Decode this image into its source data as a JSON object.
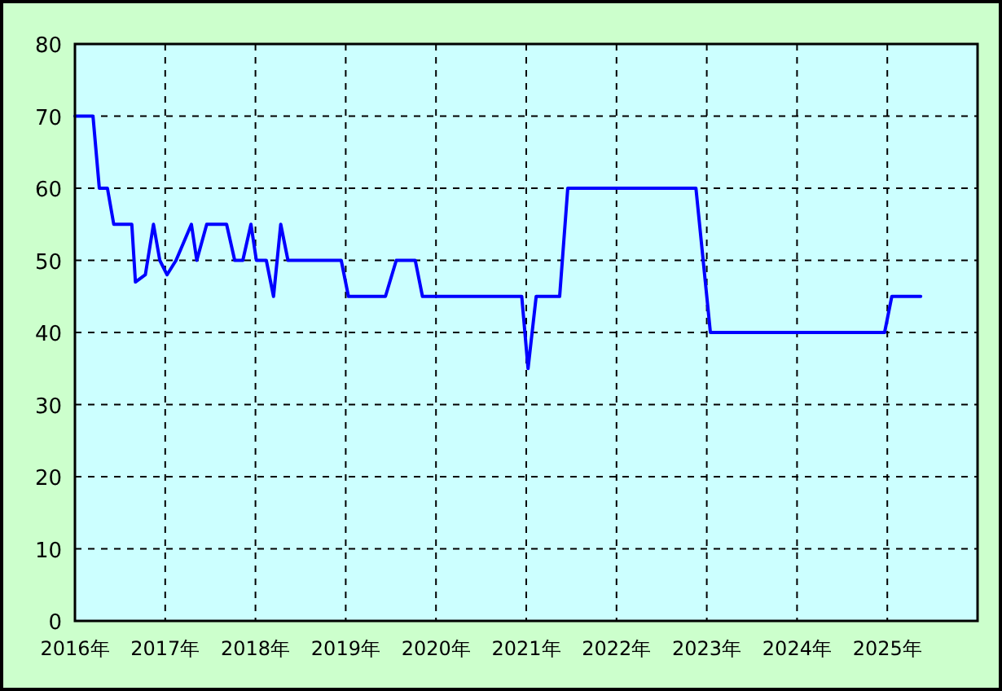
{
  "chart_data": {
    "type": "line",
    "x": [
      2016.0,
      2016.2,
      2016.27,
      2016.36,
      2016.43,
      2016.63,
      2016.67,
      2016.78,
      2016.87,
      2016.94,
      2017.02,
      2017.12,
      2017.29,
      2017.35,
      2017.46,
      2017.68,
      2017.77,
      2017.86,
      2017.95,
      2018.01,
      2018.12,
      2018.2,
      2018.28,
      2018.36,
      2018.95,
      2019.03,
      2019.44,
      2019.56,
      2019.77,
      2019.85,
      2020.95,
      2021.02,
      2021.11,
      2021.37,
      2021.46,
      2022.88,
      2023.04,
      2024.97,
      2025.05,
      2025.37
    ],
    "series": [
      {
        "color": "#0000ff",
        "values": [
          70,
          70,
          60,
          60,
          55,
          55,
          47,
          48,
          55,
          50,
          48,
          50,
          55,
          50,
          55,
          55,
          50,
          50,
          55,
          50,
          50,
          45,
          55,
          50,
          50,
          45,
          45,
          50,
          50,
          45,
          45,
          35,
          45,
          45,
          60,
          60,
          40,
          40,
          45,
          45
        ]
      }
    ],
    "xlim": [
      2016,
      2026
    ],
    "xticks": [
      {
        "value": 2016,
        "label": "2016年"
      },
      {
        "value": 2017,
        "label": "2017年"
      },
      {
        "value": 2018,
        "label": "2018年"
      },
      {
        "value": 2019,
        "label": "2019年"
      },
      {
        "value": 2020,
        "label": "2020年"
      },
      {
        "value": 2021,
        "label": "2021年"
      },
      {
        "value": 2022,
        "label": "2022年"
      },
      {
        "value": 2023,
        "label": "2023年"
      },
      {
        "value": 2024,
        "label": "2024年"
      },
      {
        "value": 2025,
        "label": "2025年"
      }
    ],
    "ylim": [
      0,
      80
    ],
    "yticks": [
      0,
      10,
      20,
      30,
      40,
      50,
      60,
      70,
      80
    ],
    "grid": true,
    "marker": "none",
    "line_style": "solid"
  }
}
